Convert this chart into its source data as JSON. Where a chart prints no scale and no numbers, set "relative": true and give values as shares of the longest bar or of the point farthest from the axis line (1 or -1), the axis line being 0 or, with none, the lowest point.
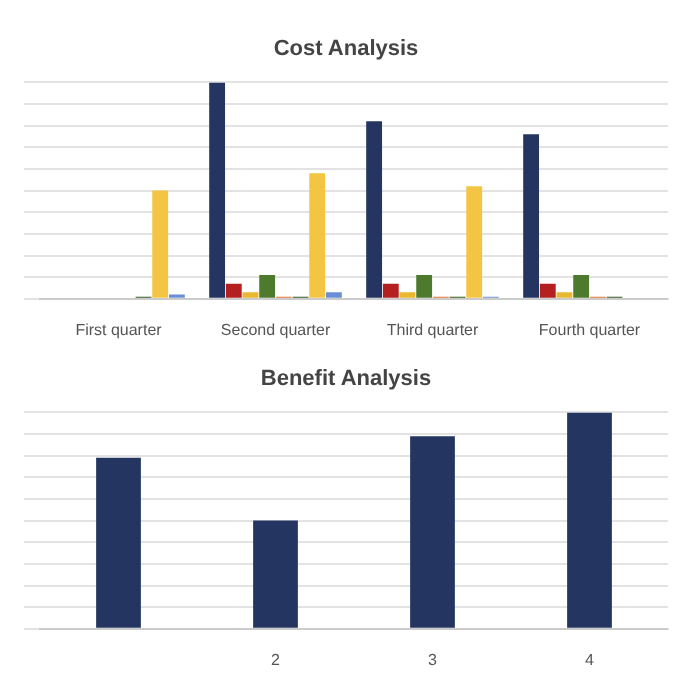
{
  "chart_data": [
    {
      "type": "bar",
      "title": "Cost Analysis",
      "relative": true,
      "grid": "y",
      "legend": false,
      "categories": [
        "First quarter",
        "Second quarter",
        "Third quarter",
        "Fourth quarter"
      ],
      "series": [
        {
          "color": "#243561",
          "values": [
            null,
            1,
            0.82,
            0.76
          ]
        },
        {
          "color": "#b42020",
          "values": [
            null,
            0.07,
            0.07,
            0.07
          ]
        },
        {
          "color": "#e8b830",
          "values": [
            null,
            0.03,
            0.03,
            0.03
          ]
        },
        {
          "color": "#4e7a2e",
          "values": [
            null,
            0.11,
            0.11,
            0.11
          ]
        },
        {
          "color": "#e07030",
          "values": [
            null,
            0.01,
            0.01,
            0.01
          ]
        },
        {
          "color": "#2e5a1e",
          "values": [
            0.01,
            0.01,
            0.01,
            0.01
          ]
        },
        {
          "color": "#f4c542",
          "values": [
            0.5,
            0.58,
            0.52,
            null
          ]
        },
        {
          "color": "#6b8fd6",
          "values": [
            0.02,
            0.03,
            0.01,
            null
          ]
        }
      ]
    },
    {
      "type": "bar",
      "title": "Benefit Analysis",
      "relative": true,
      "grid": "y",
      "legend": false,
      "categories": [
        null,
        "2",
        "3",
        "4"
      ],
      "series": [
        {
          "color": "#243561",
          "values": [
            0.79,
            0.5,
            0.89,
            1
          ]
        }
      ]
    }
  ]
}
